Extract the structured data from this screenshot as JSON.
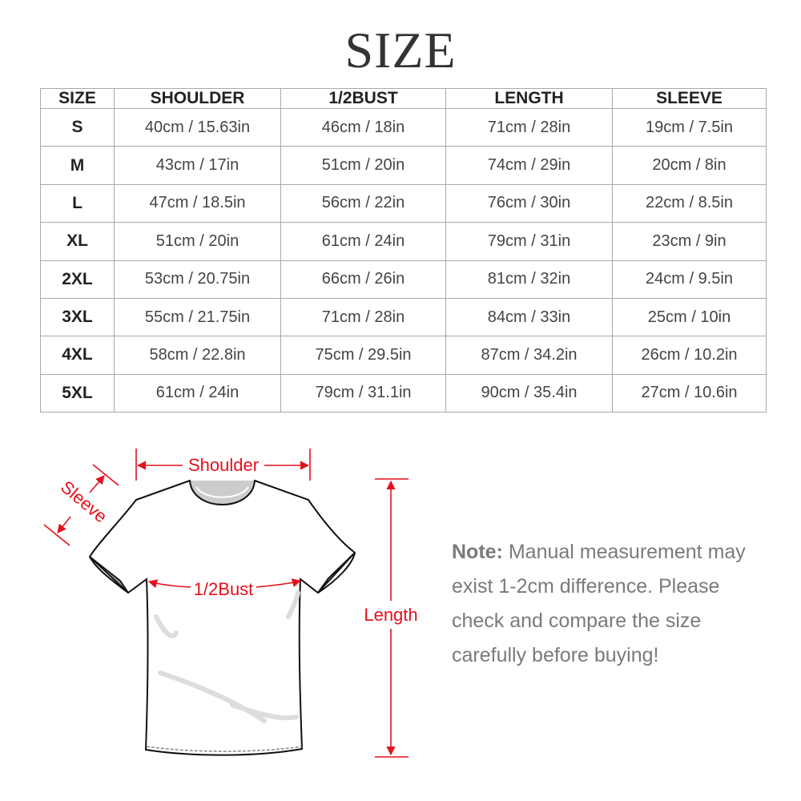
{
  "title": "SIZE",
  "table": {
    "headers": [
      "SIZE",
      "SHOULDER",
      "1/2BUST",
      "LENGTH",
      "SLEEVE"
    ],
    "rows": [
      [
        "S",
        "40cm / 15.63in",
        "46cm / 18in",
        "71cm / 28in",
        "19cm / 7.5in"
      ],
      [
        "M",
        "43cm / 17in",
        "51cm / 20in",
        "74cm / 29in",
        "20cm / 8in"
      ],
      [
        "L",
        "47cm / 18.5in",
        "56cm / 22in",
        "76cm / 30in",
        "22cm / 8.5in"
      ],
      [
        "XL",
        "51cm / 20in",
        "61cm / 24in",
        "79cm / 31in",
        "23cm / 9in"
      ],
      [
        "2XL",
        "53cm / 20.75in",
        "66cm / 26in",
        "81cm / 32in",
        "24cm / 9.5in"
      ],
      [
        "3XL",
        "55cm / 21.75in",
        "71cm / 28in",
        "84cm / 33in",
        "25cm / 10in"
      ],
      [
        "4XL",
        "58cm / 22.8in",
        "75cm / 29.5in",
        "87cm / 34.2in",
        "26cm / 10.2in"
      ],
      [
        "5XL",
        "61cm / 24in",
        "79cm / 31.1in",
        "90cm / 35.4in",
        "27cm / 10.6in"
      ]
    ]
  },
  "diagram": {
    "labels": {
      "shoulder": "Shoulder",
      "sleeve": "Sleeve",
      "bust": "1/2Bust",
      "length": "Length"
    },
    "accent_color": "#e5101d"
  },
  "note": {
    "label": "Note:",
    "text": " Manual measurement may exist 1-2cm difference. Please check and compare the size carefully before buying!"
  }
}
